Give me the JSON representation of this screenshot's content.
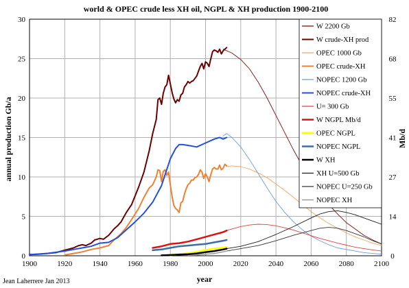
{
  "chart_data": {
    "type": "line",
    "title": "world  & OPEC crude less XH oil, NGPL & XH production 1900-2100",
    "xlabel": "year",
    "ylabel": "annual production Gb/a",
    "y2label": "Mb/d",
    "credit": "Jean Laherrere Jan 2013",
    "xlim": [
      1900,
      2100
    ],
    "ylim": [
      0,
      30
    ],
    "x_ticks": [
      "1900",
      "1920",
      "1940",
      "1960",
      "1980",
      "2000",
      "2020",
      "2040",
      "2060",
      "2080",
      "2100"
    ],
    "y_ticks": [
      "0",
      "5",
      "10",
      "15",
      "20",
      "25",
      "30"
    ],
    "y2_ticks": [
      "0",
      "14",
      "27",
      "41",
      "55",
      "68",
      "82"
    ],
    "grid": true,
    "legend_position": "top-right",
    "series": [
      {
        "name": "W 2200 Gb",
        "color": "#7b0a0a",
        "width": 0.9,
        "x": [
          2010,
          2015,
          2020,
          2025,
          2030,
          2035,
          2040,
          2045,
          2050,
          2055,
          2060,
          2065,
          2070,
          2075,
          2080,
          2085,
          2090,
          2095,
          2100
        ],
        "y": [
          26.2,
          25.7,
          24.9,
          23.7,
          22.0,
          20.0,
          17.8,
          15.6,
          13.4,
          11.4,
          9.5,
          7.9,
          6.5,
          5.3,
          4.2,
          3.4,
          2.6,
          2.0,
          1.5
        ]
      },
      {
        "name": "W  crude-XH prod",
        "color": "#6b0000",
        "width": 2,
        "x": [
          1900,
          1905,
          1910,
          1915,
          1920,
          1925,
          1928,
          1930,
          1932,
          1935,
          1937,
          1940,
          1942,
          1945,
          1948,
          1950,
          1952,
          1955,
          1958,
          1960,
          1962,
          1965,
          1968,
          1970,
          1972,
          1973,
          1974,
          1975,
          1976,
          1977,
          1978,
          1979,
          1980,
          1981,
          1982,
          1983,
          1984,
          1985,
          1986,
          1987,
          1988,
          1989,
          1990,
          1991,
          1992,
          1993,
          1994,
          1995,
          1996,
          1997,
          1998,
          1999,
          2000,
          2001,
          2002,
          2003,
          2004,
          2005,
          2006,
          2007,
          2008,
          2009,
          2010,
          2011,
          2012
        ],
        "y": [
          0.15,
          0.2,
          0.3,
          0.4,
          0.7,
          1.0,
          1.3,
          1.4,
          1.3,
          1.6,
          2.0,
          2.2,
          2.1,
          2.6,
          3.4,
          3.8,
          4.3,
          5.5,
          6.5,
          7.6,
          8.7,
          10.6,
          13.3,
          15.5,
          17.3,
          19.8,
          20.0,
          19.2,
          20.6,
          21.4,
          21.7,
          22.9,
          21.8,
          20.7,
          19.9,
          19.4,
          19.8,
          19.6,
          20.4,
          20.6,
          21.4,
          21.7,
          22.1,
          21.9,
          22.1,
          22.2,
          22.5,
          22.8,
          23.4,
          24.0,
          24.4,
          23.7,
          24.6,
          24.4,
          24.0,
          25.0,
          25.9,
          26.1,
          26.0,
          25.8,
          26.2,
          25.6,
          26.0,
          26.2,
          26.4
        ]
      },
      {
        "name": "OPEC 1000 Gb",
        "color": "#f4a460",
        "width": 0.9,
        "x": [
          2012,
          2015,
          2020,
          2025,
          2030,
          2035,
          2040,
          2045,
          2050,
          2055,
          2060,
          2065,
          2070,
          2075,
          2080,
          2085,
          2090,
          2095,
          2100
        ],
        "y": [
          11.3,
          11.4,
          11.3,
          11.0,
          10.5,
          9.9,
          9.1,
          8.3,
          7.4,
          6.5,
          5.6,
          4.8,
          4.1,
          3.5,
          2.9,
          2.4,
          2.0,
          1.6,
          1.3
        ]
      },
      {
        "name": "OPEC crude-XH",
        "color": "#f08030",
        "width": 2,
        "x": [
          1920,
          1925,
          1930,
          1935,
          1940,
          1945,
          1948,
          1950,
          1952,
          1955,
          1958,
          1960,
          1962,
          1965,
          1968,
          1970,
          1972,
          1973,
          1974,
          1975,
          1976,
          1977,
          1978,
          1979,
          1980,
          1981,
          1982,
          1983,
          1984,
          1985,
          1986,
          1987,
          1988,
          1989,
          1990,
          1991,
          1992,
          1993,
          1994,
          1995,
          1996,
          1997,
          1998,
          1999,
          2000,
          2001,
          2002,
          2003,
          2004,
          2005,
          2006,
          2007,
          2008,
          2009,
          2010,
          2011,
          2012
        ],
        "y": [
          0.1,
          0.3,
          0.5,
          0.8,
          1.0,
          1.3,
          2.0,
          2.4,
          2.8,
          3.6,
          4.6,
          5.3,
          6.0,
          7.4,
          8.6,
          9.0,
          10.0,
          10.9,
          10.8,
          9.4,
          10.7,
          10.9,
          10.2,
          10.6,
          9.0,
          7.5,
          6.4,
          6.0,
          5.8,
          5.5,
          6.7,
          6.9,
          7.8,
          8.5,
          9.0,
          9.2,
          9.6,
          9.6,
          9.9,
          10.0,
          10.3,
          10.9,
          10.6,
          9.8,
          10.4,
          10.0,
          9.4,
          10.3,
          11.0,
          11.2,
          11.0,
          11.0,
          11.5,
          10.9,
          11.1,
          11.6,
          11.4
        ]
      },
      {
        "name": "NOPEC 1200 Gb",
        "color": "#6a9bd8",
        "width": 0.9,
        "x": [
          2010,
          2012,
          2015,
          2020,
          2025,
          2030,
          2035,
          2040,
          2045,
          2050,
          2055,
          2060,
          2065,
          2070,
          2075,
          2080,
          2085,
          2090,
          2095,
          2100
        ],
        "y": [
          15.2,
          15.5,
          15.0,
          13.8,
          12.2,
          10.4,
          8.6,
          6.9,
          5.5,
          4.3,
          3.3,
          2.5,
          1.9,
          1.4,
          1.0,
          0.8,
          0.6,
          0.4,
          0.3,
          0.2
        ]
      },
      {
        "name": "NOPEC  crude-XH",
        "color": "#2050e0",
        "width": 2,
        "x": [
          1900,
          1910,
          1920,
          1925,
          1930,
          1935,
          1940,
          1945,
          1950,
          1955,
          1960,
          1965,
          1970,
          1975,
          1980,
          1983,
          1985,
          1987,
          1990,
          1995,
          2000,
          2005,
          2008,
          2010,
          2012
        ],
        "y": [
          0.15,
          0.3,
          0.6,
          0.8,
          1.0,
          1.2,
          1.6,
          1.7,
          2.3,
          3.3,
          4.3,
          5.4,
          6.8,
          8.9,
          12.3,
          13.6,
          14.1,
          14.1,
          14.0,
          13.8,
          14.3,
          14.8,
          15.0,
          14.8,
          15.0
        ]
      },
      {
        "name": "U= 300 Gb",
        "color": "#e04040",
        "width": 0.9,
        "x": [
          2012,
          2015,
          2020,
          2025,
          2030,
          2035,
          2040,
          2045,
          2050,
          2055,
          2060,
          2065,
          2070,
          2075,
          2080,
          2085,
          2090,
          2095,
          2100
        ],
        "y": [
          3.2,
          3.4,
          3.7,
          3.9,
          4.0,
          3.95,
          3.8,
          3.55,
          3.25,
          2.9,
          2.55,
          2.2,
          1.9,
          1.6,
          1.35,
          1.1,
          0.9,
          0.75,
          0.6
        ]
      },
      {
        "name": "W NGPL Mb/d",
        "color": "#e01010",
        "width": 2.5,
        "x": [
          1970,
          1975,
          1980,
          1985,
          1990,
          1995,
          2000,
          2005,
          2010,
          2012
        ],
        "y": [
          1.0,
          1.2,
          1.5,
          1.6,
          1.8,
          2.1,
          2.4,
          2.7,
          3.0,
          3.2
        ]
      },
      {
        "name": "OPEC NGPL",
        "color": "#ffff00",
        "width": 3,
        "x": [
          1980,
          1985,
          1990,
          1995,
          2000,
          2005,
          2010,
          2012
        ],
        "y": [
          0.1,
          0.2,
          0.3,
          0.5,
          0.7,
          0.9,
          1.0,
          1.1
        ]
      },
      {
        "name": "NOPEC NGPL",
        "color": "#3a6ea5",
        "width": 2.5,
        "x": [
          1970,
          1975,
          1980,
          1985,
          1990,
          1995,
          2000,
          2005,
          2010,
          2012
        ],
        "y": [
          0.7,
          0.8,
          1.0,
          1.2,
          1.3,
          1.4,
          1.5,
          1.7,
          1.9,
          2.0
        ]
      },
      {
        "name": "W XH",
        "color": "#000000",
        "width": 2.5,
        "x": [
          1975,
          1980,
          1985,
          1990,
          1995,
          2000,
          2005,
          2010,
          2012
        ],
        "y": [
          0.05,
          0.1,
          0.15,
          0.2,
          0.3,
          0.45,
          0.6,
          0.8,
          0.9
        ]
      },
      {
        "name": "XH U=500 Gb",
        "color": "#1a1a1a",
        "width": 0.9,
        "x": [
          2012,
          2020,
          2030,
          2040,
          2050,
          2060,
          2065,
          2070,
          2075,
          2080,
          2085,
          2090,
          2095,
          2100
        ],
        "y": [
          0.9,
          1.2,
          1.8,
          2.7,
          3.7,
          4.8,
          5.3,
          5.6,
          5.7,
          5.5,
          5.2,
          4.8,
          4.4,
          4.0
        ]
      },
      {
        "name": "NOPEC U=250 Gb",
        "color": "#333333",
        "width": 0.9,
        "x": [
          2012,
          2020,
          2030,
          2040,
          2050,
          2060,
          2065,
          2070,
          2075,
          2080,
          2085,
          2090,
          2095,
          2100
        ],
        "y": [
          0.6,
          0.9,
          1.3,
          1.9,
          2.6,
          3.2,
          3.5,
          3.6,
          3.5,
          3.2,
          2.8,
          2.4,
          1.9,
          1.5
        ]
      },
      {
        "name": "NOPEC XH",
        "color": "#9a9a9a",
        "width": 1.5,
        "x": [
          1990,
          1995,
          2000,
          2005,
          2010,
          2012
        ],
        "y": [
          0.05,
          0.1,
          0.2,
          0.3,
          0.5,
          0.6
        ]
      }
    ]
  }
}
